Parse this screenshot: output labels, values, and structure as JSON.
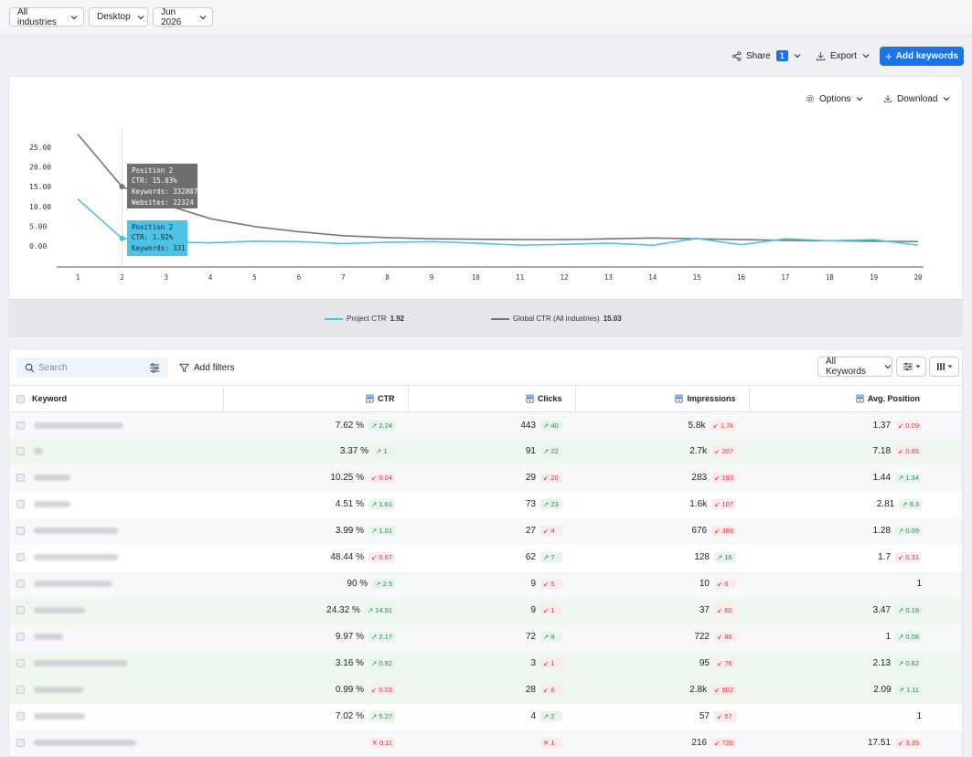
{
  "filters": {
    "industry": "All industries",
    "device": "Desktop",
    "month": "Jun 2026"
  },
  "actions": {
    "share_label": "Share",
    "share_count": "1",
    "export_label": "Export",
    "add_keywords_label": "Add keywords"
  },
  "chart_toolbar": {
    "options_label": "Options",
    "download_label": "Download"
  },
  "tooltips": {
    "global": {
      "line1": "Position 2",
      "line2": "CTR: 15.03%",
      "line3": "Keywords: 332807",
      "line4": "Websites: 22324"
    },
    "project": {
      "line1": "Position 2",
      "line2": "CTR: 1.92%",
      "line3": "Keywords: 331"
    }
  },
  "legend": {
    "project_label": "Project CTR",
    "project_value": "1.92",
    "global_label": "Global CTR (All industries)",
    "global_value": "15.03"
  },
  "chart_data": {
    "type": "line",
    "x": [
      1,
      2,
      3,
      4,
      5,
      6,
      7,
      8,
      9,
      10,
      11,
      12,
      13,
      14,
      15,
      16,
      17,
      18,
      19,
      20
    ],
    "y_ticks": [
      "25.00",
      "20.00",
      "15.00",
      "10.00",
      "5.00",
      "0.00"
    ],
    "ylim": [
      0,
      25
    ],
    "series": [
      {
        "name": "Project CTR",
        "color": "#4cc3e6",
        "values": [
          11.9,
          1.92,
          1.0,
          0.8,
          1.2,
          1.1,
          0.6,
          0.9,
          1.1,
          0.7,
          0.2,
          0.4,
          0.7,
          0.2,
          1.9,
          0.3,
          1.8,
          1.3,
          1.6,
          0.2
        ]
      },
      {
        "name": "Global CTR (All industries)",
        "color": "#777777",
        "values": [
          28.3,
          15.03,
          10.4,
          6.9,
          4.9,
          3.6,
          2.6,
          2.1,
          1.8,
          1.7,
          1.6,
          1.6,
          1.8,
          2.0,
          1.8,
          1.6,
          1.4,
          1.3,
          1.2,
          1.1
        ]
      }
    ]
  },
  "table_toolbar": {
    "search_placeholder": "Search",
    "add_filters_label": "Add filters",
    "keywords_filter": "All Keywords"
  },
  "columns": {
    "keyword": "Keyword",
    "ctr": "CTR",
    "clicks": "Clicks",
    "impressions": "Impressions",
    "avg_position": "Avg. Position"
  },
  "rows": [
    {
      "ctr": "7.62 %",
      "ctr_chg": "↗ 2.24",
      "ctr_dir": "up",
      "clicks": "443",
      "clicks_chg": "↗ 40",
      "clicks_dir": "up",
      "impr": "5.8k",
      "impr_chg": "↙ 1.7k",
      "impr_dir": "down",
      "pos": "1.37",
      "pos_chg": "↙ 0.09",
      "pos_dir": "down"
    },
    {
      "ctr": "3.37 %",
      "ctr_chg": "↗ 1",
      "ctr_dir": "up",
      "clicks": "91",
      "clicks_chg": "↗ 22",
      "clicks_dir": "up",
      "impr": "2.7k",
      "impr_chg": "↙ 207",
      "impr_dir": "down",
      "pos": "7.18",
      "pos_chg": "↙ 0.65",
      "pos_dir": "down"
    },
    {
      "ctr": "10.25 %",
      "ctr_chg": "↙ 0.04",
      "ctr_dir": "down",
      "clicks": "29",
      "clicks_chg": "↙ 20",
      "clicks_dir": "down",
      "impr": "283",
      "impr_chg": "↙ 193",
      "impr_dir": "down",
      "pos": "1.44",
      "pos_chg": "↗ 1.34",
      "pos_dir": "up"
    },
    {
      "ctr": "4.51 %",
      "ctr_chg": "↗ 1.61",
      "ctr_dir": "up",
      "clicks": "73",
      "clicks_chg": "↗ 23",
      "clicks_dir": "up",
      "impr": "1.6k",
      "impr_chg": "↙ 107",
      "impr_dir": "down",
      "pos": "2.81",
      "pos_chg": "↗ 9.3",
      "pos_dir": "up"
    },
    {
      "ctr": "3.99 %",
      "ctr_chg": "↗ 1.01",
      "ctr_dir": "up",
      "clicks": "27",
      "clicks_chg": "↙ 4",
      "clicks_dir": "down",
      "impr": "676",
      "impr_chg": "↙ 366",
      "impr_dir": "down",
      "pos": "1.28",
      "pos_chg": "↗ 0.09",
      "pos_dir": "up"
    },
    {
      "ctr": "48.44 %",
      "ctr_chg": "↙ 0.67",
      "ctr_dir": "down",
      "clicks": "62",
      "clicks_chg": "↗ 7",
      "clicks_dir": "up",
      "impr": "128",
      "impr_chg": "↗ 16",
      "impr_dir": "up",
      "pos": "1.7",
      "pos_chg": "↙ 0.31",
      "pos_dir": "down"
    },
    {
      "ctr": "90 %",
      "ctr_chg": "↗ 2.5",
      "ctr_dir": "up",
      "clicks": "9",
      "clicks_chg": "↙ 5",
      "clicks_dir": "down",
      "impr": "10",
      "impr_chg": "↙ 6",
      "impr_dir": "down",
      "pos": "1",
      "pos_chg": "",
      "pos_dir": "none"
    },
    {
      "ctr": "24.32 %",
      "ctr_chg": "↗ 14.91",
      "ctr_dir": "up",
      "clicks": "9",
      "clicks_chg": "↙ 1",
      "clicks_dir": "down",
      "impr": "37",
      "impr_chg": "↙ 60",
      "impr_dir": "down",
      "pos": "3.47",
      "pos_chg": "↗ 0.18",
      "pos_dir": "up"
    },
    {
      "ctr": "9.97 %",
      "ctr_chg": "↗ 2.17",
      "ctr_dir": "up",
      "clicks": "72",
      "clicks_chg": "↗ 8",
      "clicks_dir": "up",
      "impr": "722",
      "impr_chg": "↙ 86",
      "impr_dir": "down",
      "pos": "1",
      "pos_chg": "↗ 0.08",
      "pos_dir": "up"
    },
    {
      "ctr": "3.16 %",
      "ctr_chg": "↗ 0.82",
      "ctr_dir": "up",
      "clicks": "3",
      "clicks_chg": "↙ 1",
      "clicks_dir": "down",
      "impr": "95",
      "impr_chg": "↙ 76",
      "impr_dir": "down",
      "pos": "2.13",
      "pos_chg": "↗ 0.62",
      "pos_dir": "up"
    },
    {
      "ctr": "0.99 %",
      "ctr_chg": "↙ 0.03",
      "ctr_dir": "down",
      "clicks": "28",
      "clicks_chg": "↙ 6",
      "clicks_dir": "down",
      "impr": "2.8k",
      "impr_chg": "↙ 502",
      "impr_dir": "down",
      "pos": "2.09",
      "pos_chg": "↗ 1.11",
      "pos_dir": "up"
    },
    {
      "ctr": "7.02 %",
      "ctr_chg": "↗ 5.27",
      "ctr_dir": "up",
      "clicks": "4",
      "clicks_chg": "↗ 2",
      "clicks_dir": "up",
      "impr": "57",
      "impr_chg": "↙ 57",
      "impr_dir": "down",
      "pos": "1",
      "pos_chg": "",
      "pos_dir": "none"
    },
    {
      "ctr": "",
      "ctr_chg": "✕ 0.11",
      "ctr_dir": "down",
      "clicks": "",
      "clicks_chg": "✕ 1",
      "clicks_dir": "down",
      "impr": "216",
      "impr_chg": "↙ 720",
      "impr_dir": "down",
      "pos": "17.51",
      "pos_chg": "↙ 3.35",
      "pos_dir": "down"
    }
  ],
  "colors": {
    "accent": "#1a73e8",
    "project_line": "#4cc3e6",
    "global_line": "#777777",
    "up": "#2e8b57",
    "down": "#dd3333"
  }
}
